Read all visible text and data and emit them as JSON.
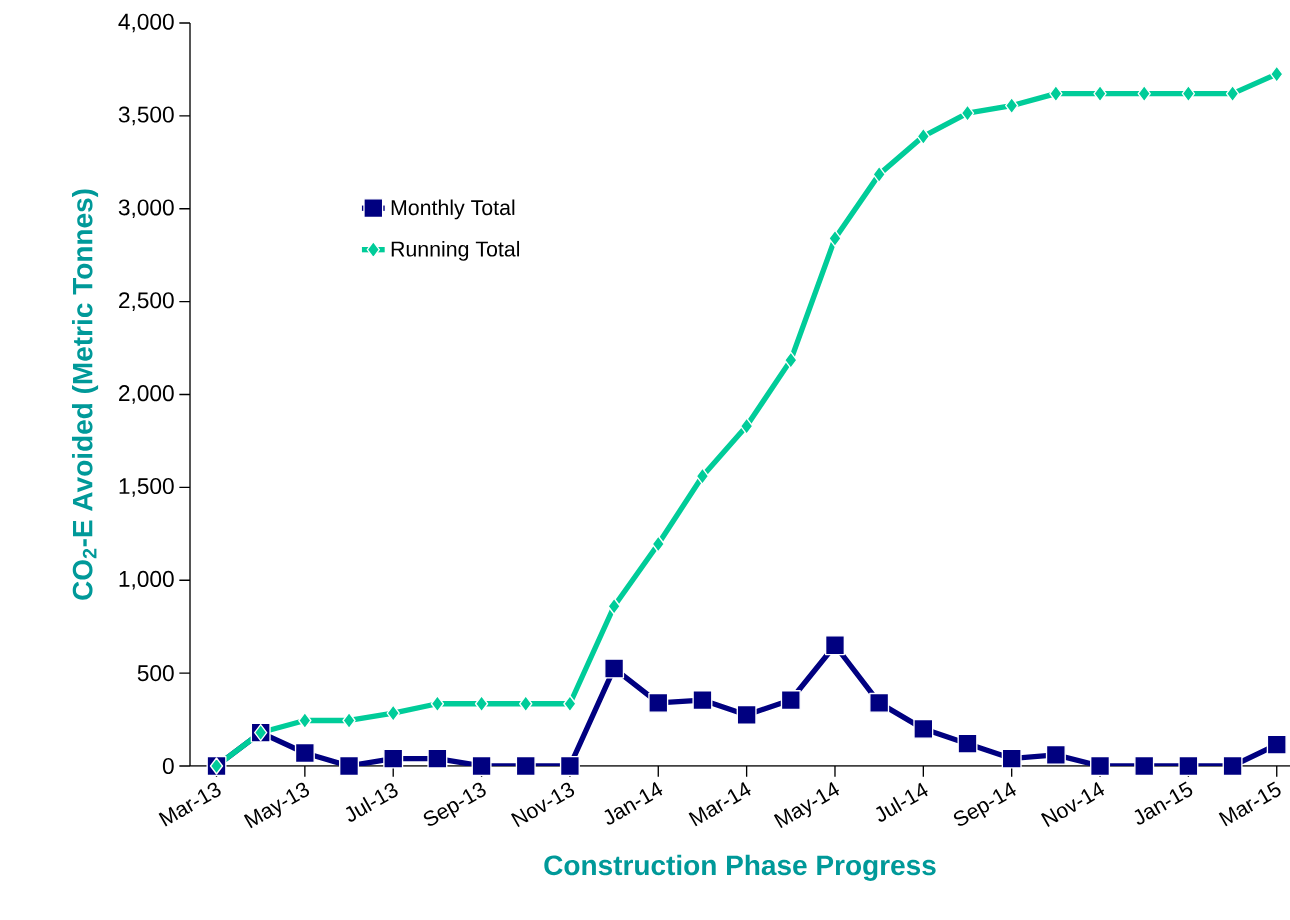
{
  "chart_data": {
    "type": "line",
    "xlabel": "Construction Phase Progress",
    "ylabel": "CO$_{2}$-E Avoided (Metric Tonnes)",
    "categories": [
      "Mar-13",
      null,
      "May-13",
      null,
      "Jul-13",
      null,
      "Sep-13",
      null,
      "Nov-13",
      null,
      "Jan-14",
      null,
      "Mar-14",
      null,
      "May-14",
      null,
      "Jul-14",
      null,
      "Sep-14",
      null,
      "Nov-14",
      null,
      "Jan-15",
      null,
      "Mar-15"
    ],
    "series": [
      {
        "name": "Monthly Total",
        "color": "#000080",
        "marker": "square",
        "values": [
          0,
          180,
          70,
          0,
          40,
          40,
          0,
          0,
          0,
          525,
          340,
          355,
          275,
          355,
          650,
          340,
          200,
          120,
          40,
          60,
          0,
          0,
          0,
          0,
          115
        ]
      },
      {
        "name": "Running Total",
        "color": "#00cc99",
        "marker": "diamond",
        "values": [
          0,
          180,
          245,
          245,
          285,
          335,
          335,
          335,
          335,
          860,
          1195,
          1560,
          1830,
          2185,
          2840,
          3185,
          3390,
          3515,
          3555,
          3620,
          3620,
          3620,
          3620,
          3620,
          3725
        ]
      }
    ],
    "ylim": [
      0,
      4000
    ],
    "yticks": [
      {
        "value": 0,
        "label": "0"
      },
      {
        "value": 500,
        "label": "500"
      },
      {
        "value": 1000,
        "label": "1,000"
      },
      {
        "value": 1500,
        "label": "1,500"
      },
      {
        "value": 2000,
        "label": "2,000"
      },
      {
        "value": 2500,
        "label": "2,500"
      },
      {
        "value": 3000,
        "label": "3,000"
      },
      {
        "value": 3500,
        "label": "3,500"
      },
      {
        "value": 4000,
        "label": "4,000"
      }
    ],
    "grid": false,
    "legend": "top left",
    "line_style": "solid"
  }
}
